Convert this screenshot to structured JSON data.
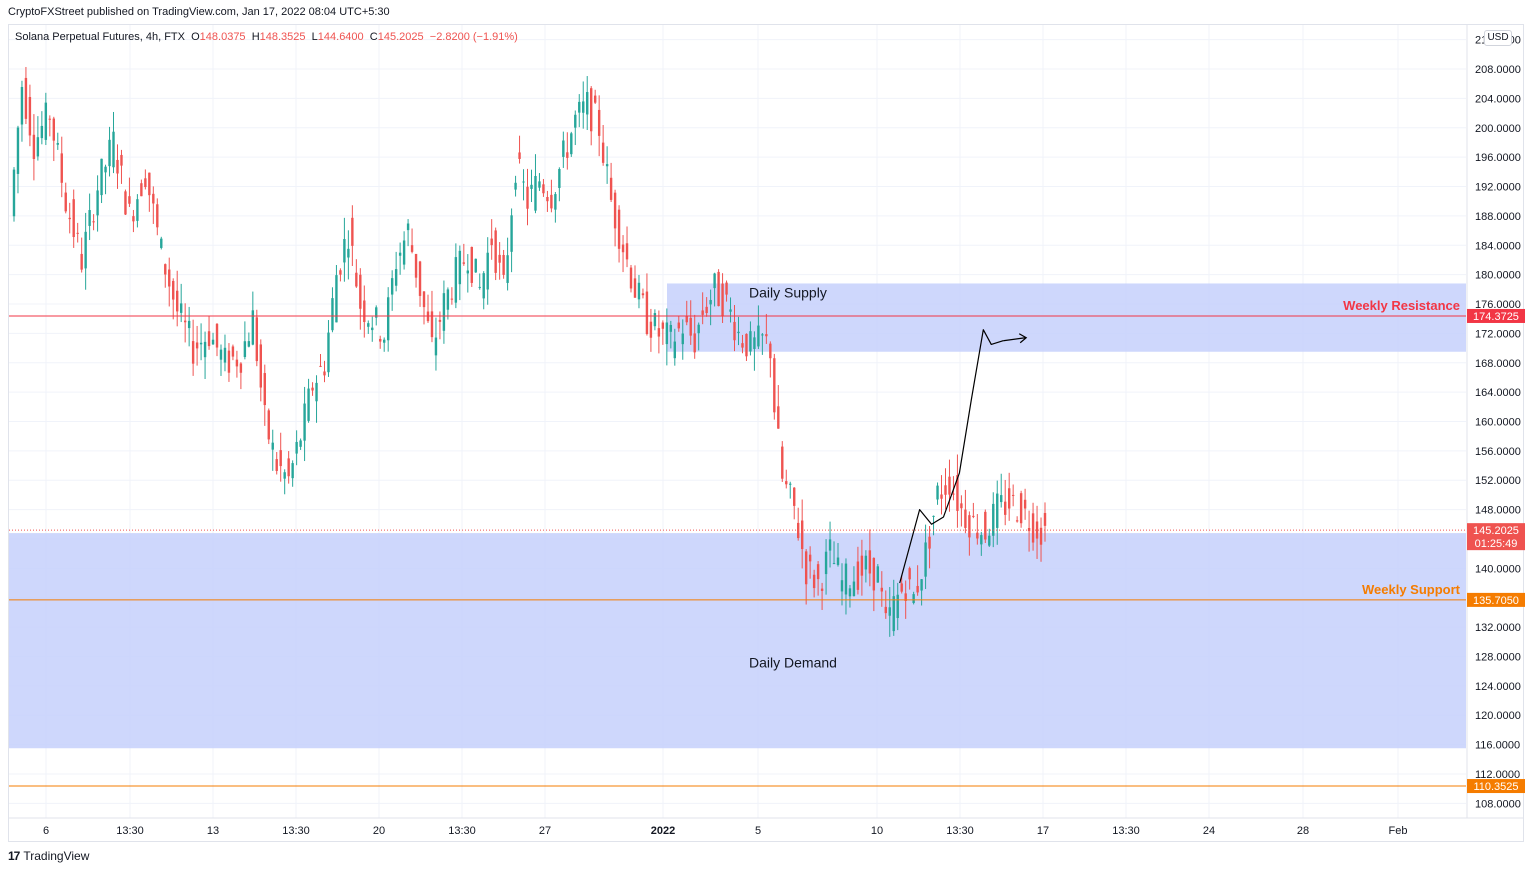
{
  "header": {
    "publisher_line": "CryptoFXStreet published on TradingView.com, Jan 17, 2022 08:04 UTC+5:30"
  },
  "legend": {
    "symbol": "Solana Perpetual Futures, 4h, FTX",
    "o_label": "O",
    "o_value": "148.0375",
    "h_label": "H",
    "h_value": "148.3525",
    "l_label": "L",
    "l_value": "144.6400",
    "c_label": "C",
    "c_value": "145.2025",
    "change": "−2.8200 (−1.91%)"
  },
  "currency_button": "USD",
  "footer": {
    "brand_mark": "17",
    "brand_name": "TradingView"
  },
  "colors": {
    "up": "#26a69a",
    "down": "#ef5350",
    "zone": "#c5d0fb",
    "resistance": "#f23645",
    "support": "#f57c00",
    "current": "#ef5350",
    "grid": "#f0f3fa"
  },
  "chart_data": {
    "type": "candlestick",
    "title": "Solana Perpetual Futures, 4h, FTX",
    "ylim": [
      106,
      214
    ],
    "y_ticks": [
      "108.0000",
      "112.0000",
      "116.0000",
      "120.0000",
      "124.0000",
      "128.0000",
      "132.0000",
      "136.0000",
      "140.0000",
      "144.0000",
      "148.0000",
      "152.0000",
      "156.0000",
      "160.0000",
      "164.0000",
      "168.0000",
      "172.0000",
      "176.0000",
      "180.0000",
      "184.0000",
      "188.0000",
      "192.0000",
      "196.0000",
      "200.0000",
      "204.0000",
      "208.0000",
      "212.0000",
      "216.0000"
    ],
    "x_ticks": [
      "6",
      "13:30",
      "13",
      "13:30",
      "20",
      "13:30",
      "27",
      "2022",
      "5",
      "10",
      "13:30",
      "17",
      "13:30",
      "24",
      "28",
      "Feb"
    ],
    "zones": [
      {
        "label": "Daily Supply",
        "low": 169.5,
        "high": 178.8
      },
      {
        "label": "Daily Demand",
        "low": 115.5,
        "high": 144.8
      }
    ],
    "levels": [
      {
        "label": "Weekly Resistance",
        "price": "174.3725",
        "value": 174.3725,
        "kind": "resistance"
      },
      {
        "label": "Weekly Support",
        "price": "135.7050",
        "value": 135.705,
        "kind": "support"
      },
      {
        "label": "",
        "price": "110.3525",
        "value": 110.3525,
        "kind": "support"
      }
    ],
    "current_price": {
      "value": 145.2025,
      "label": "145.2025",
      "countdown": "01:25:49"
    },
    "price_path": [
      [
        0,
        188
      ],
      [
        3,
        206
      ],
      [
        6,
        198
      ],
      [
        10,
        202
      ],
      [
        14,
        190
      ],
      [
        18,
        182
      ],
      [
        22,
        192
      ],
      [
        26,
        198
      ],
      [
        30,
        188
      ],
      [
        34,
        194
      ],
      [
        38,
        183
      ],
      [
        42,
        175
      ],
      [
        46,
        170
      ],
      [
        50,
        172
      ],
      [
        54,
        168
      ],
      [
        58,
        169
      ],
      [
        61,
        174
      ],
      [
        64,
        160
      ],
      [
        67,
        154
      ],
      [
        70,
        152
      ],
      [
        73,
        158
      ],
      [
        76,
        165
      ],
      [
        79,
        168
      ],
      [
        82,
        180
      ],
      [
        85,
        186
      ],
      [
        88,
        176
      ],
      [
        91,
        174
      ],
      [
        94,
        172
      ],
      [
        97,
        182
      ],
      [
        100,
        186
      ],
      [
        103,
        178
      ],
      [
        106,
        170
      ],
      [
        109,
        176
      ],
      [
        112,
        180
      ],
      [
        115,
        183
      ],
      [
        118,
        178
      ],
      [
        121,
        185
      ],
      [
        124,
        178
      ],
      [
        127,
        195
      ],
      [
        130,
        190
      ],
      [
        133,
        193
      ],
      [
        136,
        191
      ],
      [
        139,
        196
      ],
      [
        142,
        201
      ],
      [
        145,
        203
      ],
      [
        148,
        200
      ],
      [
        151,
        190
      ],
      [
        154,
        184
      ],
      [
        157,
        178
      ],
      [
        160,
        174
      ],
      [
        163,
        172
      ],
      [
        166,
        171
      ],
      [
        169,
        173
      ],
      [
        172,
        171
      ],
      [
        174,
        175
      ],
      [
        177,
        178
      ],
      [
        180,
        176
      ],
      [
        183,
        172
      ],
      [
        186,
        170
      ],
      [
        189,
        171
      ],
      [
        191,
        170
      ],
      [
        192,
        162
      ],
      [
        194,
        152
      ],
      [
        197,
        148
      ],
      [
        200,
        140
      ],
      [
        203,
        138
      ],
      [
        206,
        142
      ],
      [
        209,
        138
      ],
      [
        212,
        139
      ],
      [
        215,
        140
      ],
      [
        218,
        139
      ],
      [
        220,
        132
      ],
      [
        222,
        135
      ],
      [
        225,
        138
      ],
      [
        227,
        136
      ],
      [
        230,
        142
      ],
      [
        233,
        150
      ],
      [
        236,
        152
      ],
      [
        239,
        148
      ],
      [
        242,
        146
      ],
      [
        245,
        145
      ],
      [
        248,
        148
      ],
      [
        251,
        149
      ],
      [
        254,
        148
      ],
      [
        257,
        146
      ],
      [
        259,
        145.2
      ]
    ],
    "projection_path": [
      [
        223,
        138
      ],
      [
        228,
        148
      ],
      [
        231,
        146
      ],
      [
        234,
        147
      ],
      [
        238,
        153
      ],
      [
        241,
        163
      ],
      [
        244,
        172.5
      ],
      [
        246,
        170.5
      ],
      [
        249,
        171
      ]
    ]
  }
}
